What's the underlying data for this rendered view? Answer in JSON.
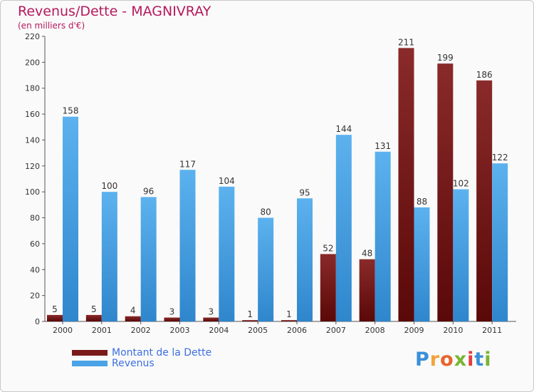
{
  "title": "Revenus/Dette - MAGNIVRAY",
  "subtitle": "(en milliers d'€)",
  "legend": {
    "debt_label": "Montant de la Dette",
    "revenue_label": "Revenus"
  },
  "logo": {
    "text": "Proxiti",
    "letters": [
      "P",
      "r",
      "o",
      "x",
      "i",
      "t",
      "i"
    ],
    "colors": [
      "#3a8fd8",
      "#f2a23a",
      "#e8632c",
      "#79b531",
      "#e33c3c",
      "#3a8fd8",
      "#79b531"
    ]
  },
  "colors": {
    "debt": "#7a1a1a",
    "revenue": "#4aa3e6",
    "text": "#333333"
  },
  "chart_data": {
    "type": "bar",
    "title": "Revenus/Dette - MAGNIVRAY",
    "ylabel": "(en milliers d'€)",
    "xlabel": "",
    "ylim": [
      0,
      220
    ],
    "yticks": [
      0,
      20,
      40,
      60,
      80,
      100,
      120,
      140,
      160,
      180,
      200,
      220
    ],
    "grid": false,
    "legend_position": "bottom-left",
    "categories": [
      "2000",
      "2001",
      "2002",
      "2003",
      "2004",
      "2005",
      "2006",
      "2007",
      "2008",
      "2009",
      "2010",
      "2011"
    ],
    "series": [
      {
        "name": "Montant de la Dette",
        "values": [
          5,
          5,
          4,
          3,
          3,
          1,
          1,
          52,
          48,
          211,
          199,
          186
        ]
      },
      {
        "name": "Revenus",
        "values": [
          158,
          100,
          96,
          117,
          104,
          80,
          95,
          144,
          131,
          88,
          102,
          122
        ]
      }
    ]
  }
}
